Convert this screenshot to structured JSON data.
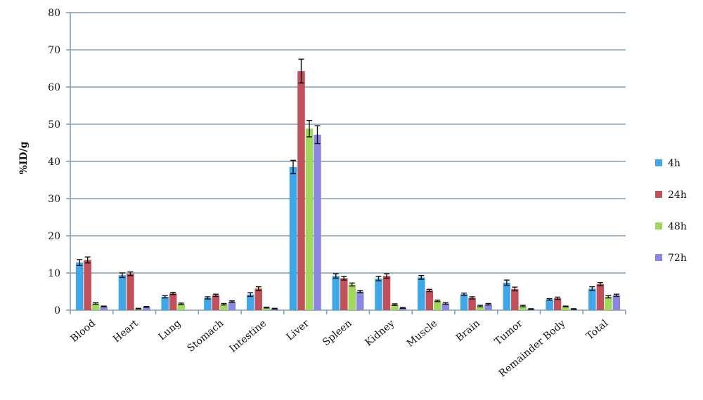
{
  "chart_data": {
    "type": "bar",
    "title": "",
    "xlabel": "",
    "ylabel": "%ID/g",
    "ylim": [
      0,
      80
    ],
    "yticks": [
      0,
      10,
      20,
      30,
      40,
      50,
      60,
      70,
      80
    ],
    "grid": true,
    "legend_position": "right",
    "categories": [
      "Blood",
      "Heart",
      "Lung",
      "Stomach",
      "Intestine",
      "Liver",
      "Spleen",
      "Kidney",
      "Muscle",
      "Brain",
      "Tumor",
      "Remainder Body",
      "Total"
    ],
    "series": [
      {
        "name": "4h",
        "color": "#3fa6e8",
        "values": [
          12.8,
          9.4,
          3.6,
          3.3,
          4.2,
          38.5,
          9.2,
          8.5,
          8.8,
          4.3,
          7.4,
          2.9,
          5.8
        ],
        "errors": [
          0.8,
          0.6,
          0.3,
          0.3,
          0.5,
          1.8,
          0.6,
          0.6,
          0.5,
          0.3,
          0.7,
          0.2,
          0.5
        ]
      },
      {
        "name": "24h",
        "color": "#c0505a",
        "values": [
          13.5,
          9.8,
          4.5,
          4.0,
          5.8,
          64.3,
          8.6,
          9.2,
          5.3,
          3.3,
          5.7,
          3.2,
          7.0
        ],
        "errors": [
          0.8,
          0.5,
          0.3,
          0.3,
          0.5,
          3.2,
          0.5,
          0.6,
          0.3,
          0.3,
          0.5,
          0.3,
          0.4
        ]
      },
      {
        "name": "48h",
        "color": "#9fd85a",
        "values": [
          1.8,
          0.4,
          1.7,
          1.6,
          0.7,
          48.8,
          6.9,
          1.5,
          2.5,
          1.1,
          1.1,
          1.0,
          3.6
        ],
        "errors": [
          0.2,
          0.1,
          0.2,
          0.2,
          0.1,
          2.2,
          0.4,
          0.2,
          0.2,
          0.2,
          0.2,
          0.1,
          0.3
        ]
      },
      {
        "name": "72h",
        "color": "#8b86e0",
        "values": [
          1.0,
          0.9,
          0.0,
          2.3,
          0.4,
          47.2,
          5.0,
          0.6,
          1.8,
          1.6,
          0.3,
          0.3,
          4.0
        ],
        "errors": [
          0.1,
          0.1,
          0.0,
          0.2,
          0.1,
          2.4,
          0.3,
          0.1,
          0.2,
          0.2,
          0.1,
          0.1,
          0.3
        ]
      }
    ]
  }
}
